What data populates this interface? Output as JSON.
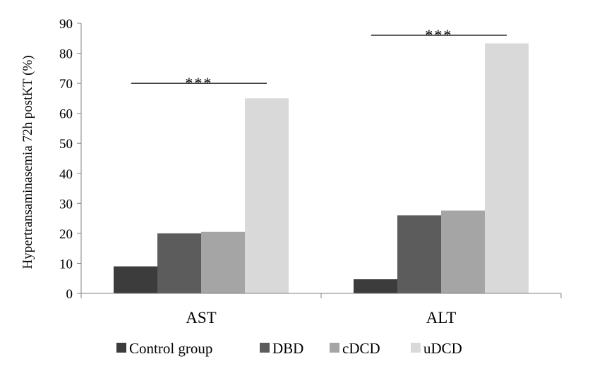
{
  "chart_data": {
    "type": "bar",
    "title": "",
    "xlabel": "",
    "ylabel": "Hypertransaminasemia 72h postKT (%)",
    "ylim": [
      0,
      90
    ],
    "yticks": [
      0,
      10,
      20,
      30,
      40,
      50,
      60,
      70,
      80,
      90
    ],
    "categories": [
      "AST",
      "ALT"
    ],
    "series": [
      {
        "name": "Control group",
        "color": "#3c3c3c",
        "values": [
          9,
          4.7
        ]
      },
      {
        "name": "DBD",
        "color": "#5c5c5c",
        "values": [
          20,
          26
        ]
      },
      {
        "name": "cDCD",
        "color": "#a5a5a5",
        "values": [
          20.5,
          27.6
        ]
      },
      {
        "name": "uDCD",
        "color": "#d9d9d9",
        "values": [
          65,
          83.3
        ]
      }
    ],
    "annotations": [
      {
        "category": "AST",
        "text": "***",
        "level": 70
      },
      {
        "category": "ALT",
        "text": "***",
        "level": 86
      }
    ],
    "grid": false,
    "legend_position": "bottom"
  }
}
